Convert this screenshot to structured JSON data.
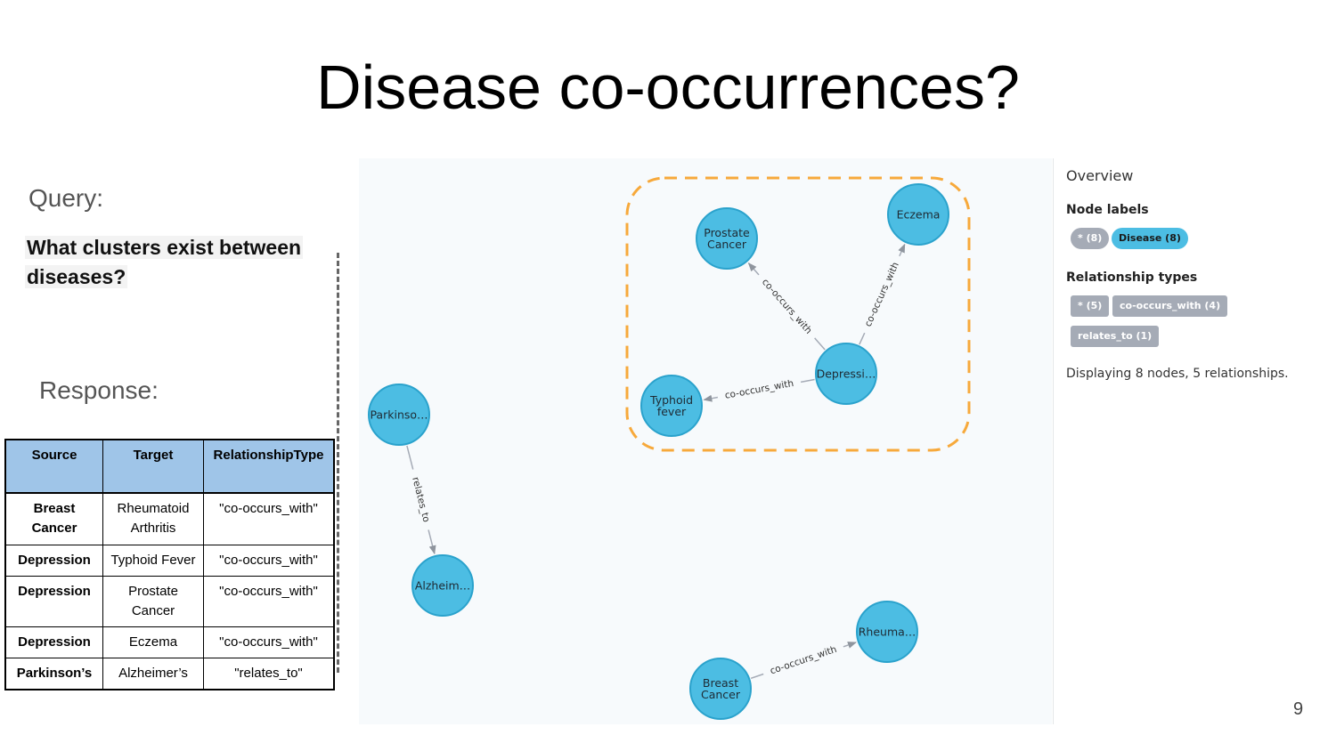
{
  "slide": {
    "title": "Disease co-occurrences?",
    "query_label": "Query:",
    "query_text_line1": "What clusters exist between",
    "query_text_line2": "diseases?",
    "response_label": "Response:",
    "page_number": "9"
  },
  "table": {
    "headers": [
      "Source",
      "Target",
      "RelationshipType"
    ],
    "rows": [
      [
        "Breast Cancer",
        "Rheumatoid Arthritis",
        "\"co-occurs_with\""
      ],
      [
        "Depression",
        "Typhoid Fever",
        "\"co-occurs_with\""
      ],
      [
        "Depression",
        "Prostate Cancer",
        "\"co-occurs_with\""
      ],
      [
        "Depression",
        "Eczema",
        "\"co-occurs_with\""
      ],
      [
        "Parkinson’s",
        "Alzheimer’s",
        "\"relates_to\""
      ]
    ]
  },
  "graph": {
    "node_color": "#4cbde3",
    "node_stroke": "#2aa2cc",
    "cluster_color": "#f7a93b",
    "nodes": [
      {
        "id": "prostate",
        "name": "node-prostate-cancer",
        "lines": [
          "Prostate",
          "Cancer"
        ]
      },
      {
        "id": "eczema",
        "name": "node-eczema",
        "lines": [
          "Eczema"
        ]
      },
      {
        "id": "depression",
        "name": "node-depression",
        "lines": [
          "Depressi…"
        ]
      },
      {
        "id": "typhoid",
        "name": "node-typhoid-fever",
        "lines": [
          "Typhoid",
          "fever"
        ]
      },
      {
        "id": "parkinson",
        "name": "node-parkinsons",
        "lines": [
          "Parkinso…"
        ]
      },
      {
        "id": "alzheimer",
        "name": "node-alzheimers",
        "lines": [
          "Alzheim…"
        ]
      },
      {
        "id": "rheuma",
        "name": "node-rheumatoid-arthritis",
        "lines": [
          "Rheuma…"
        ]
      },
      {
        "id": "breast",
        "name": "node-breast-cancer",
        "lines": [
          "Breast",
          "Cancer"
        ]
      }
    ],
    "edges": [
      {
        "source": "depression",
        "target": "prostate",
        "label": "co-occurs_with"
      },
      {
        "source": "depression",
        "target": "eczema",
        "label": "co-occurs_with"
      },
      {
        "source": "depression",
        "target": "typhoid",
        "label": "co-occurs_with"
      },
      {
        "source": "parkinson",
        "target": "alzheimer",
        "label": "relates_to"
      },
      {
        "source": "breast",
        "target": "rheuma",
        "label": "co-occurs_with"
      }
    ]
  },
  "overview": {
    "title": "Overview",
    "node_labels_heading": "Node labels",
    "node_label_pills": [
      "* (8)",
      "Disease (8)"
    ],
    "relationship_types_heading": "Relationship types",
    "relationship_pills": [
      "* (5)",
      "co-occurs_with (4)",
      "relates_to (1)"
    ],
    "summary": "Displaying 8 nodes, 5 relationships."
  }
}
